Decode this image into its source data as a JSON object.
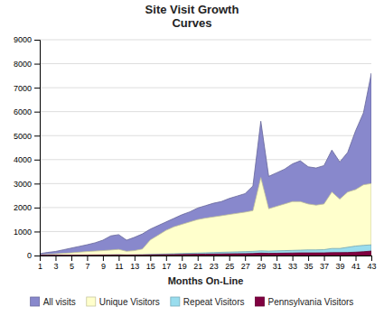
{
  "chart_data": {
    "type": "area",
    "title": "Site Visit Growth\nCurves",
    "xlabel": "Months On-Line",
    "x": [
      1,
      2,
      3,
      4,
      5,
      6,
      7,
      8,
      9,
      10,
      11,
      12,
      13,
      14,
      15,
      16,
      17,
      18,
      19,
      20,
      21,
      22,
      23,
      24,
      25,
      26,
      27,
      28,
      29,
      30,
      31,
      32,
      33,
      34,
      35,
      36,
      37,
      38,
      39,
      40,
      41,
      42,
      43
    ],
    "series": [
      {
        "name": "All visits",
        "color": "#8888cc",
        "values": [
          80,
          130,
          170,
          240,
          310,
          380,
          450,
          530,
          640,
          820,
          870,
          640,
          760,
          900,
          1100,
          1250,
          1400,
          1550,
          1700,
          1820,
          1980,
          2080,
          2180,
          2250,
          2380,
          2480,
          2580,
          2900,
          5600,
          3300,
          3450,
          3600,
          3820,
          3950,
          3700,
          3650,
          3750,
          4400,
          3900,
          4300,
          5200,
          5950,
          7600
        ]
      },
      {
        "name": "Unique Visitors",
        "color": "#ffffcc",
        "values": [
          30,
          50,
          70,
          90,
          110,
          140,
          165,
          185,
          205,
          230,
          255,
          175,
          205,
          270,
          650,
          850,
          1050,
          1200,
          1300,
          1400,
          1500,
          1560,
          1610,
          1660,
          1710,
          1760,
          1810,
          1870,
          3250,
          1950,
          2050,
          2150,
          2250,
          2250,
          2150,
          2100,
          2150,
          2650,
          2350,
          2650,
          2750,
          2950,
          3000
        ]
      },
      {
        "name": "Repeat Visitors",
        "color": "#99ddee",
        "values": [
          5,
          7,
          9,
          11,
          13,
          15,
          18,
          22,
          27,
          32,
          36,
          27,
          31,
          36,
          45,
          55,
          65,
          74,
          84,
          94,
          104,
          114,
          124,
          134,
          144,
          154,
          164,
          174,
          195,
          184,
          194,
          204,
          214,
          224,
          234,
          234,
          244,
          294,
          294,
          344,
          394,
          424,
          445
        ]
      },
      {
        "name": "Pennsylvania Visitors",
        "color": "#800040",
        "values": [
          3,
          4,
          5,
          7,
          8,
          10,
          13,
          15,
          17,
          19,
          22,
          17,
          19,
          22,
          26,
          30,
          35,
          40,
          44,
          49,
          53,
          58,
          62,
          67,
          71,
          76,
          80,
          84,
          100,
          90,
          95,
          100,
          105,
          110,
          110,
          110,
          111,
          120,
          121,
          126,
          140,
          158,
          185
        ]
      }
    ],
    "xlim": [
      1,
      43
    ],
    "ylim": [
      0,
      9000
    ],
    "xticks": [
      1,
      3,
      5,
      7,
      9,
      11,
      13,
      15,
      17,
      19,
      21,
      23,
      25,
      27,
      29,
      31,
      33,
      35,
      37,
      39,
      41,
      43
    ],
    "yticks": [
      0,
      1000,
      2000,
      3000,
      4000,
      5000,
      6000,
      7000,
      8000,
      9000
    ],
    "grid": true,
    "legend": "bottom"
  }
}
